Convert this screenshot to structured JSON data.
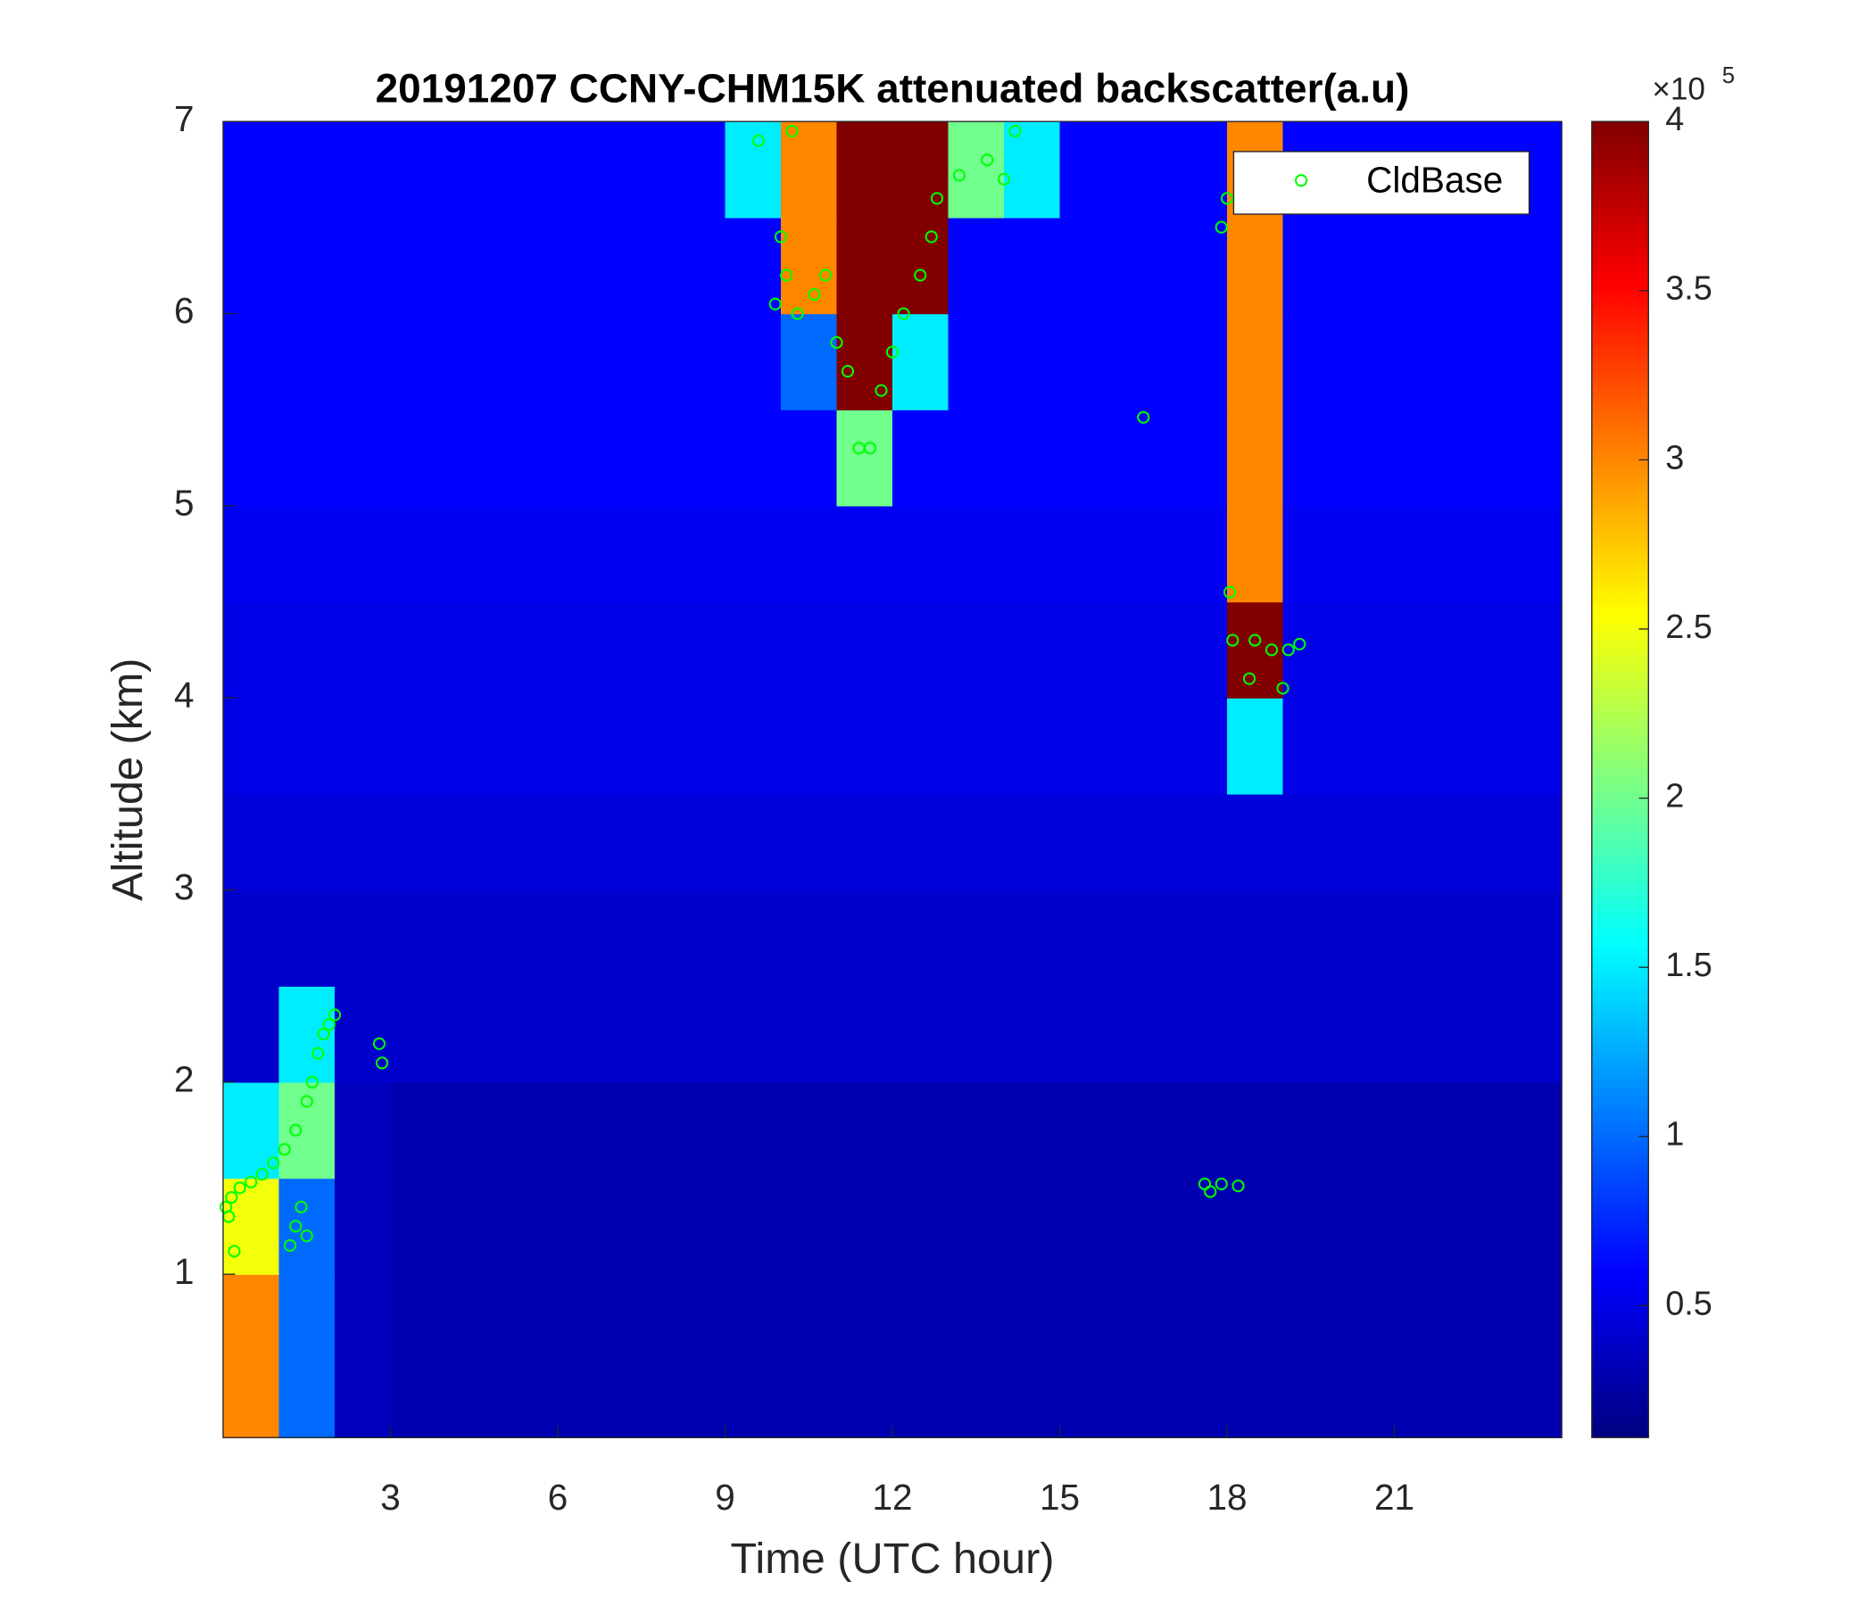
{
  "chart_data": {
    "type": "heatmap",
    "title": "20191207 CCNY-CHM15K attenuated backscatter(a.u)",
    "x_label": "Time (UTC hour)",
    "y_label": "Altitude (km)",
    "xlim": [
      0,
      24
    ],
    "ylim": [
      0.15,
      7
    ],
    "xticks": [
      3,
      6,
      9,
      12,
      15,
      18,
      21
    ],
    "yticks": [
      1,
      2,
      3,
      4,
      5,
      6,
      7
    ],
    "colormap": "jet",
    "clim": [
      0.11,
      4
    ],
    "cticks": [
      0.5,
      1,
      1.5,
      2,
      2.5,
      3,
      3.5,
      4
    ],
    "cbar_multiplier": "×10",
    "cbar_exponent": 5,
    "legend_position": "upper right",
    "x_edges": [
      0,
      1,
      2,
      3,
      4,
      5,
      6,
      7,
      8,
      9,
      10,
      11,
      12,
      13,
      14,
      15,
      16,
      17,
      18,
      19,
      20,
      21,
      22,
      23,
      24
    ],
    "y_edges": [
      0.15,
      0.5,
      1,
      1.5,
      2,
      2.5,
      3,
      3.5,
      4,
      4.5,
      5,
      5.5,
      6,
      6.5,
      7
    ],
    "z": [
      [
        3,
        1,
        0.35,
        0.3,
        0.3,
        0.3,
        0.3,
        0.3,
        0.3,
        0.3,
        0.3,
        0.3,
        0.3,
        0.3,
        0.3,
        0.3,
        0.3,
        0.3,
        0.3,
        0.3,
        0.3,
        0.3,
        0.3,
        0.3
      ],
      [
        3,
        1,
        0.35,
        0.3,
        0.3,
        0.3,
        0.3,
        0.3,
        0.3,
        0.3,
        0.3,
        0.3,
        0.3,
        0.3,
        0.3,
        0.3,
        0.3,
        0.3,
        0.3,
        0.3,
        0.3,
        0.3,
        0.3,
        0.3
      ],
      [
        2.5,
        1,
        0.35,
        0.3,
        0.3,
        0.3,
        0.3,
        0.3,
        0.3,
        0.3,
        0.3,
        0.3,
        0.3,
        0.3,
        0.3,
        0.3,
        0.3,
        0.3,
        0.3,
        0.3,
        0.3,
        0.3,
        0.3,
        0.3
      ],
      [
        1.5,
        2,
        0.35,
        0.3,
        0.3,
        0.3,
        0.3,
        0.3,
        0.3,
        0.3,
        0.3,
        0.3,
        0.3,
        0.3,
        0.3,
        0.3,
        0.3,
        0.3,
        0.3,
        0.3,
        0.3,
        0.3,
        0.3,
        0.3
      ],
      [
        0.4,
        1.5,
        0.4,
        0.4,
        0.4,
        0.4,
        0.4,
        0.4,
        0.4,
        0.4,
        0.4,
        0.4,
        0.4,
        0.4,
        0.4,
        0.4,
        0.4,
        0.4,
        0.4,
        0.4,
        0.4,
        0.4,
        0.4,
        0.4
      ],
      [
        0.4,
        0.4,
        0.4,
        0.4,
        0.4,
        0.4,
        0.4,
        0.4,
        0.4,
        0.4,
        0.4,
        0.4,
        0.4,
        0.4,
        0.4,
        0.4,
        0.4,
        0.4,
        0.4,
        0.4,
        0.4,
        0.4,
        0.4,
        0.4
      ],
      [
        0.45,
        0.45,
        0.45,
        0.45,
        0.45,
        0.45,
        0.45,
        0.45,
        0.45,
        0.45,
        0.45,
        0.45,
        0.45,
        0.45,
        0.45,
        0.45,
        0.45,
        0.45,
        0.45,
        0.45,
        0.45,
        0.45,
        0.45,
        0.45
      ],
      [
        0.5,
        0.5,
        0.5,
        0.5,
        0.5,
        0.5,
        0.5,
        0.5,
        0.5,
        0.5,
        0.5,
        0.5,
        0.5,
        0.5,
        0.5,
        0.5,
        0.5,
        0.5,
        1.5,
        0.5,
        0.5,
        0.5,
        0.5,
        0.5
      ],
      [
        0.5,
        0.5,
        0.5,
        0.5,
        0.5,
        0.5,
        0.5,
        0.5,
        0.5,
        0.5,
        0.5,
        0.5,
        0.5,
        0.5,
        0.5,
        0.5,
        0.5,
        0.5,
        4,
        0.5,
        0.5,
        0.5,
        0.5,
        0.5
      ],
      [
        0.55,
        0.55,
        0.55,
        0.55,
        0.55,
        0.55,
        0.55,
        0.55,
        0.55,
        0.55,
        0.55,
        0.55,
        0.55,
        0.55,
        0.55,
        0.55,
        0.55,
        0.55,
        3,
        0.55,
        0.55,
        0.55,
        0.55,
        0.55
      ],
      [
        0.6,
        0.6,
        0.6,
        0.6,
        0.6,
        0.6,
        0.6,
        0.6,
        0.6,
        0.6,
        0.6,
        2,
        0.6,
        0.6,
        0.6,
        0.6,
        0.6,
        0.6,
        3,
        0.6,
        0.6,
        0.6,
        0.6,
        0.6
      ],
      [
        0.6,
        0.6,
        0.6,
        0.6,
        0.6,
        0.6,
        0.6,
        0.6,
        0.6,
        0.6,
        1,
        4,
        1.5,
        0.6,
        0.6,
        0.6,
        0.6,
        0.6,
        3,
        0.6,
        0.6,
        0.6,
        0.6,
        0.6
      ],
      [
        0.6,
        0.6,
        0.6,
        0.6,
        0.6,
        0.6,
        0.6,
        0.6,
        0.6,
        0.6,
        3,
        4,
        4,
        0.6,
        0.6,
        0.6,
        0.6,
        0.6,
        3,
        0.6,
        0.6,
        0.6,
        0.6,
        0.6
      ],
      [
        0.6,
        0.6,
        0.6,
        0.6,
        0.6,
        0.6,
        0.6,
        0.6,
        0.6,
        1.5,
        3,
        4,
        4,
        2,
        1.5,
        0.6,
        0.6,
        0.6,
        3,
        0.6,
        0.6,
        0.6,
        0.6,
        0.6
      ]
    ],
    "series": [
      {
        "name": "CldBase",
        "color": "#00ff00",
        "x": [
          0.05,
          0.15,
          0.1,
          0.2,
          0.3,
          0.5,
          0.7,
          0.9,
          1.1,
          1.3,
          1.2,
          1.3,
          1.4,
          1.5,
          1.5,
          1.6,
          1.7,
          1.8,
          1.9,
          2.0,
          2.8,
          2.85,
          9.6,
          9.9,
          10.0,
          10.1,
          10.2,
          10.3,
          10.6,
          10.8,
          11.0,
          11.2,
          11.4,
          11.6,
          11.8,
          12.0,
          12.2,
          12.5,
          12.7,
          12.8,
          13.2,
          13.7,
          14.0,
          14.2,
          16.5,
          17.6,
          17.7,
          17.9,
          18.2,
          17.9,
          18.0,
          18.05,
          18.1,
          18.4,
          18.5,
          18.8,
          19.0,
          19.1,
          19.3
        ],
        "y": [
          1.35,
          1.4,
          1.3,
          1.12,
          1.45,
          1.48,
          1.52,
          1.58,
          1.65,
          1.75,
          1.15,
          1.25,
          1.35,
          1.9,
          1.2,
          2.0,
          2.15,
          2.25,
          2.3,
          2.35,
          2.2,
          2.1,
          6.9,
          6.05,
          6.4,
          6.2,
          6.95,
          6.0,
          6.1,
          6.2,
          5.85,
          5.7,
          5.3,
          5.3,
          5.6,
          5.8,
          6.0,
          6.2,
          6.4,
          6.6,
          6.72,
          6.8,
          6.7,
          6.95,
          5.46,
          1.47,
          1.43,
          1.47,
          1.46,
          6.45,
          6.6,
          4.55,
          4.3,
          4.1,
          4.3,
          4.25,
          4.05,
          4.25,
          4.28
        ]
      }
    ]
  }
}
